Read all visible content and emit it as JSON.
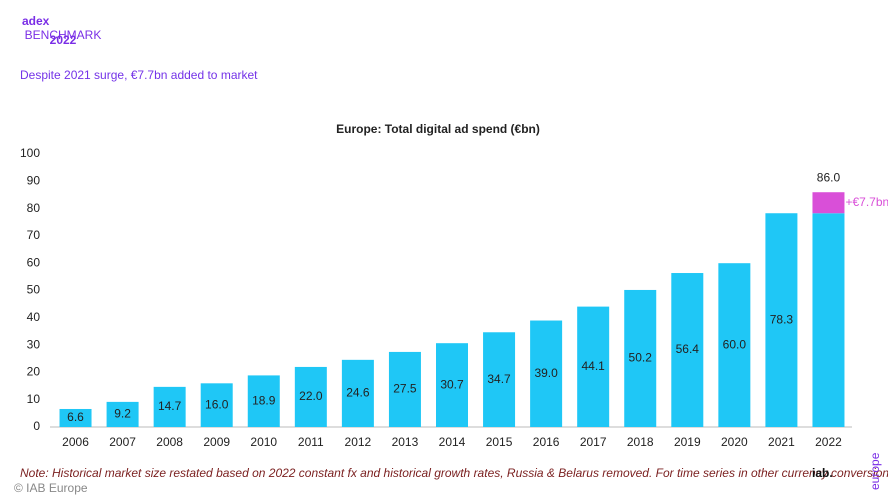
{
  "slide": {
    "logo": "adex",
    "logo_sub": "BENCHMARK",
    "logo_year": "2022",
    "title": "Despite 2021 surge, €7.7bn added to market",
    "note": "Note: Historical market size restated based on 2022 constant fx and historical growth rates, Russia & Belarus removed. For time series in other currency conversions, see www.iabeurope.eu",
    "copyright": "© IAB Europe",
    "brand": "iab.",
    "brand_sub": "europe"
  },
  "chart_data": {
    "type": "bar",
    "title": "Europe: Total digital ad spend (€bn)",
    "categories": [
      "2006",
      "2007",
      "2008",
      "2009",
      "2010",
      "2011",
      "2012",
      "2013",
      "2014",
      "2015",
      "2016",
      "2017",
      "2018",
      "2019",
      "2020",
      "2021",
      "2022"
    ],
    "values": [
      6.6,
      9.2,
      14.7,
      16.0,
      18.9,
      22.0,
      24.6,
      27.5,
      30.7,
      34.7,
      39.0,
      44.1,
      50.2,
      56.4,
      60.0,
      78.3,
      78.3
    ],
    "value_labels": [
      "6.6",
      "9.2",
      "14.7",
      "16.0",
      "18.9",
      "22.0",
      "24.6",
      "27.5",
      "30.7",
      "34.7",
      "39.0",
      "44.1",
      "50.2",
      "56.4",
      "60.0",
      "78.3",
      null
    ],
    "color": "#1fc7f6",
    "increment": {
      "value": 7.7,
      "label": "+€7.7bn",
      "color": "#d94fd8"
    },
    "total": {
      "value": 86.0,
      "label": "86.0"
    },
    "ylim": [
      0,
      100
    ],
    "yticks": [
      0,
      10,
      20,
      30,
      40,
      50,
      60,
      70,
      80,
      90,
      100
    ],
    "grid": false
  }
}
